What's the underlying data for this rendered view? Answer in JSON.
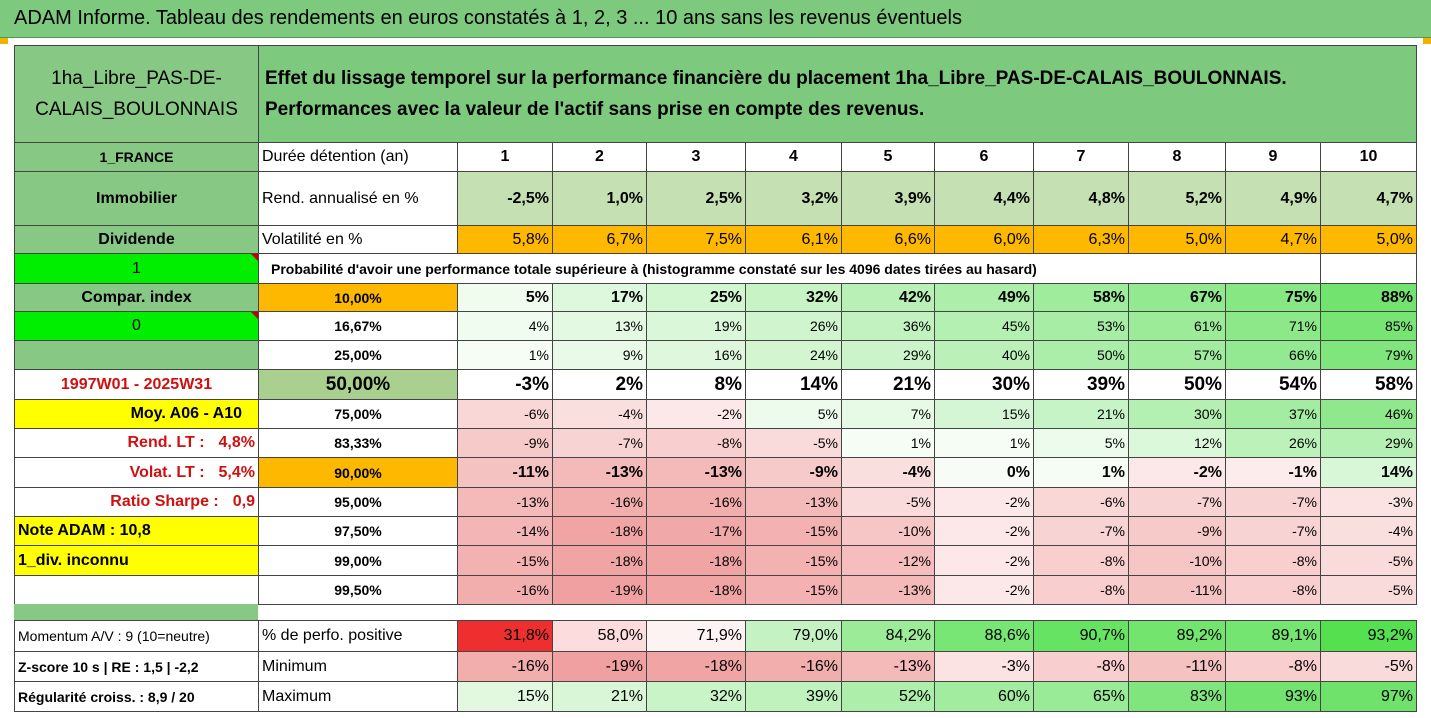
{
  "title": "ADAM Informe. Tableau des rendements en euros constatés à 1, 2, 3 ... 10 ans sans les revenus éventuels",
  "header": {
    "asset": "1ha_Libre_PAS-DE-CALAIS_BOULONNAIS",
    "description": "Effet du lissage temporel sur la performance financière du placement 1ha_Libre_PAS-DE-CALAIS_BOULONNAIS. Performances avec la valeur de l'actif sans prise en compte des revenus."
  },
  "left": {
    "country": "1_FRANCE",
    "category": "Immobilier",
    "dividend_label": "Dividende",
    "dividend_value": "1",
    "compar_label": "Compar. index",
    "compar_value": "0",
    "period": "1997W01 - 2025W31",
    "moy": "Moy. A06 - A10",
    "rend_lt_label": "Rend. LT :",
    "rend_lt_value": "4,8%",
    "volat_lt_label": "Volat. LT :",
    "volat_lt_value": "5,4%",
    "sharpe_label": "Ratio Sharpe :",
    "sharpe_value": "0,9",
    "note": "Note ADAM : 10,8",
    "div": "1_div. inconnu",
    "momentum": "Momentum A/V : 9 (10=neutre)",
    "zscore": "Z-score 10 s  | RE : 1,5 | -2,2",
    "regularite": "Régularité croiss. : 8,9 / 20"
  },
  "row_labels": {
    "duree": "Durée détention (an)",
    "rend": "Rend. annualisé en %",
    "volat": "Volatilité en %",
    "proba": "Probabilité d'avoir une performance totale supérieure à (histogramme constaté sur les 4096 dates tirées au hasard)",
    "positive": "% de perfo. positive",
    "minimum": "Minimum",
    "maximum": "Maximum"
  },
  "years": [
    "1",
    "2",
    "3",
    "4",
    "5",
    "6",
    "7",
    "8",
    "9",
    "10"
  ],
  "rend": [
    "-2,5%",
    "1,0%",
    "2,5%",
    "3,2%",
    "3,9%",
    "4,4%",
    "4,8%",
    "5,2%",
    "4,9%",
    "4,7%"
  ],
  "volat": [
    "5,8%",
    "6,7%",
    "7,5%",
    "6,1%",
    "6,6%",
    "6,0%",
    "6,3%",
    "5,0%",
    "4,7%",
    "5,0%"
  ],
  "prob_rows": [
    {
      "level": "10,00%",
      "values": [
        "5%",
        "17%",
        "25%",
        "32%",
        "42%",
        "49%",
        "58%",
        "67%",
        "75%",
        "88%"
      ]
    },
    {
      "level": "16,67%",
      "values": [
        "4%",
        "13%",
        "19%",
        "26%",
        "36%",
        "45%",
        "53%",
        "61%",
        "71%",
        "85%"
      ]
    },
    {
      "level": "25,00%",
      "values": [
        "1%",
        "9%",
        "16%",
        "24%",
        "29%",
        "40%",
        "50%",
        "57%",
        "66%",
        "79%"
      ]
    },
    {
      "level": "50,00%",
      "values": [
        "-3%",
        "2%",
        "8%",
        "14%",
        "21%",
        "30%",
        "39%",
        "50%",
        "54%",
        "58%"
      ]
    },
    {
      "level": "75,00%",
      "values": [
        "-6%",
        "-4%",
        "-2%",
        "5%",
        "7%",
        "15%",
        "21%",
        "30%",
        "37%",
        "46%"
      ]
    },
    {
      "level": "83,33%",
      "values": [
        "-9%",
        "-7%",
        "-8%",
        "-5%",
        "1%",
        "1%",
        "5%",
        "12%",
        "26%",
        "29%"
      ]
    },
    {
      "level": "90,00%",
      "values": [
        "-11%",
        "-13%",
        "-13%",
        "-9%",
        "-4%",
        "0%",
        "1%",
        "-2%",
        "-1%",
        "14%"
      ]
    },
    {
      "level": "95,00%",
      "values": [
        "-13%",
        "-16%",
        "-16%",
        "-13%",
        "-5%",
        "-2%",
        "-6%",
        "-7%",
        "-7%",
        "-3%"
      ]
    },
    {
      "level": "97,50%",
      "values": [
        "-14%",
        "-18%",
        "-17%",
        "-15%",
        "-10%",
        "-2%",
        "-7%",
        "-9%",
        "-7%",
        "-4%"
      ]
    },
    {
      "level": "99,00%",
      "values": [
        "-15%",
        "-18%",
        "-18%",
        "-15%",
        "-12%",
        "-2%",
        "-8%",
        "-10%",
        "-8%",
        "-5%"
      ]
    },
    {
      "level": "99,50%",
      "values": [
        "-16%",
        "-19%",
        "-18%",
        "-15%",
        "-13%",
        "-2%",
        "-8%",
        "-11%",
        "-8%",
        "-5%"
      ]
    }
  ],
  "positive": [
    "31,8%",
    "58,0%",
    "71,9%",
    "79,0%",
    "84,2%",
    "88,6%",
    "90,7%",
    "89,2%",
    "89,1%",
    "93,2%"
  ],
  "minimum": [
    "-16%",
    "-19%",
    "-18%",
    "-16%",
    "-13%",
    "-3%",
    "-8%",
    "-11%",
    "-8%",
    "-5%"
  ],
  "maximum": [
    "15%",
    "21%",
    "32%",
    "39%",
    "52%",
    "60%",
    "65%",
    "83%",
    "93%",
    "97%"
  ],
  "colors": {
    "header_green": "#7dc97e",
    "left_green": "#87c984",
    "bright_green": "#00ee00",
    "yellow": "#ffff00",
    "orange": "#ffb800",
    "rend_green": "#c5e0b3",
    "level_green": "#a9d08e",
    "label_red": "#d01010"
  }
}
